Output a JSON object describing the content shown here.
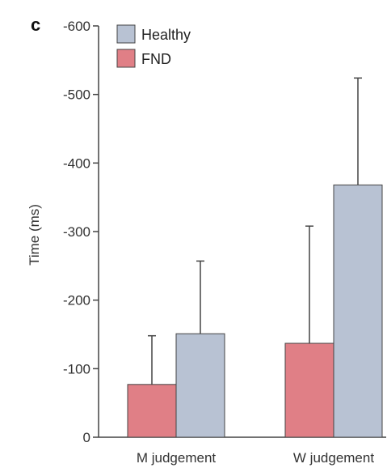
{
  "panel_label": "c",
  "colors": {
    "healthy": "#b8c2d3",
    "fnd": "#e07f86",
    "axis": "#444444"
  },
  "chart_data": {
    "type": "bar",
    "categories": [
      "M judgement",
      "W judgement"
    ],
    "series": [
      {
        "name": "FND",
        "values": [
          -77,
          -137
        ],
        "error_upper": [
          -148,
          -308
        ]
      },
      {
        "name": "Healthy",
        "values": [
          -151,
          -368
        ],
        "error_upper": [
          -257,
          -524
        ]
      }
    ],
    "ylabel": "Time (ms)",
    "xlabel": "",
    "ylim": [
      0,
      -600
    ],
    "yticks": [
      0,
      -100,
      -200,
      -300,
      -400,
      -500,
      -600
    ],
    "ytick_labels": [
      "0",
      "-100",
      "-200",
      "-300",
      "-400",
      "-500",
      "-600"
    ],
    "legend": {
      "placement": "top-left",
      "entries": [
        {
          "label": "Healthy",
          "series": "Healthy"
        },
        {
          "label": "FND",
          "series": "FND"
        }
      ]
    },
    "grid": false
  }
}
